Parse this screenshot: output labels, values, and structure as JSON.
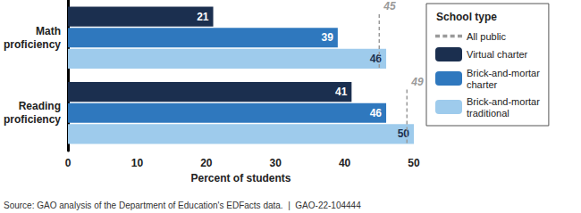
{
  "chart_data": {
    "type": "bar",
    "orientation": "horizontal",
    "categories": [
      "Math proficiency",
      "Reading proficiency"
    ],
    "series": [
      {
        "name": "Virtual charter",
        "color": "#1b2f4f",
        "values": [
          21,
          41
        ]
      },
      {
        "name": "Brick-and-mortar charter",
        "color": "#2f78be",
        "values": [
          39,
          46
        ]
      },
      {
        "name": "Brick-and-mortar traditional",
        "color": "#9ecbec",
        "values": [
          46,
          50
        ]
      }
    ],
    "reference_lines": {
      "name": "All public",
      "color": "#9a9a9a",
      "line_style": "dashed",
      "values": [
        45,
        49
      ]
    },
    "x_label": "Percent of students",
    "xlim": [
      0,
      50
    ],
    "xticks": [
      0,
      10,
      20,
      30,
      40,
      50
    ],
    "legend": "right",
    "legend_title": "School type",
    "data_labels": true,
    "grid": false,
    "source": "Source: GAO analysis of the Department of Education's EDFacts data.  |  GAO-22-104444"
  }
}
